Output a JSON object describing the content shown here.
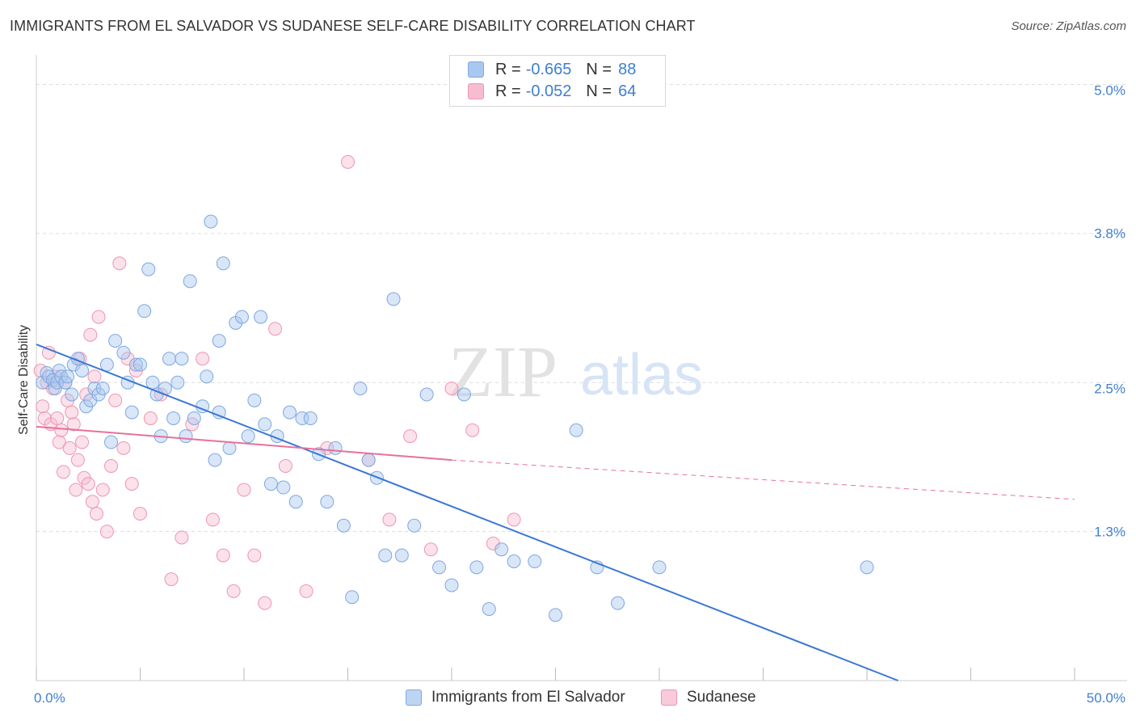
{
  "title": "IMMIGRANTS FROM EL SALVADOR VS SUDANESE SELF-CARE DISABILITY CORRELATION CHART",
  "source": "Source: ZipAtlas.com",
  "watermark": {
    "zip": "ZIP",
    "atlas": "atlas"
  },
  "legend": {
    "r_label": "R =",
    "n_label": "N =",
    "series": [
      {
        "r": "-0.665",
        "n": "88",
        "fill": "#a9c8f0",
        "stroke": "#7fa8e0"
      },
      {
        "r": "-0.052",
        "n": "64",
        "fill": "#f7bccf",
        "stroke": "#ee96b2"
      }
    ]
  },
  "bottom_legend": [
    "Immigrants from El Salvador",
    "Sudanese"
  ],
  "chart_data": {
    "type": "scatter",
    "xlabel": "",
    "ylabel": "Self-Care Disability",
    "xlim": [
      0,
      50
    ],
    "ylim": [
      0,
      5.2
    ],
    "x_tick_labels": [
      {
        "value": 0,
        "label": "0.0%"
      },
      {
        "value": 50,
        "label": "50.0%"
      }
    ],
    "y_ticks": [
      {
        "value": 1.3,
        "label": "1.3%"
      },
      {
        "value": 2.5,
        "label": "2.5%"
      },
      {
        "value": 3.8,
        "label": "3.8%"
      },
      {
        "value": 5.0,
        "label": "5.0%"
      }
    ],
    "y_gridlines": [
      1.25,
      2.5,
      3.75,
      5.0
    ],
    "grid": "horizontal dashed",
    "colors": {
      "el_salvador": "#3a78d4",
      "sudanese": "#e8709a",
      "tick_label": "#3f7fd0"
    },
    "series": [
      {
        "name": "Immigrants from El Salvador",
        "x": [
          0.3,
          0.5,
          0.6,
          0.8,
          0.9,
          1.0,
          1.1,
          1.2,
          1.4,
          1.5,
          1.7,
          1.8,
          2.0,
          2.2,
          2.4,
          2.6,
          2.8,
          3.0,
          3.2,
          3.4,
          3.6,
          3.8,
          4.2,
          4.4,
          4.6,
          4.8,
          5.0,
          5.2,
          5.4,
          5.6,
          5.8,
          6.0,
          6.2,
          6.4,
          6.6,
          6.8,
          7.0,
          7.2,
          7.4,
          7.6,
          8.0,
          8.2,
          8.4,
          8.6,
          8.8,
          9.0,
          9.3,
          9.6,
          9.9,
          10.2,
          10.5,
          10.8,
          11.0,
          11.3,
          11.6,
          11.9,
          12.2,
          12.5,
          12.8,
          13.2,
          13.6,
          14.0,
          14.4,
          14.8,
          15.2,
          15.6,
          16.0,
          16.4,
          16.8,
          17.2,
          17.6,
          18.2,
          18.8,
          19.4,
          20.0,
          20.6,
          21.2,
          21.8,
          22.4,
          23.0,
          24.0,
          25.0,
          26.0,
          27.0,
          28.0,
          30.0,
          40.0,
          8.8
        ],
        "y": [
          2.5,
          2.58,
          2.55,
          2.52,
          2.45,
          2.5,
          2.6,
          2.55,
          2.5,
          2.55,
          2.4,
          2.65,
          2.7,
          2.6,
          2.3,
          2.35,
          2.45,
          2.4,
          2.45,
          2.65,
          2.0,
          2.85,
          2.75,
          2.5,
          2.25,
          2.65,
          2.65,
          3.1,
          3.45,
          2.5,
          2.4,
          2.05,
          2.45,
          2.7,
          2.2,
          2.5,
          2.7,
          2.05,
          3.35,
          2.2,
          2.3,
          2.55,
          3.85,
          1.85,
          2.85,
          3.5,
          1.95,
          3.0,
          3.05,
          2.05,
          2.35,
          3.05,
          2.15,
          1.65,
          2.05,
          1.62,
          2.25,
          1.5,
          2.2,
          2.2,
          1.9,
          1.5,
          1.95,
          1.3,
          0.7,
          2.45,
          1.85,
          1.7,
          1.05,
          3.2,
          1.05,
          1.3,
          2.4,
          0.95,
          0.8,
          2.4,
          0.95,
          0.6,
          1.1,
          1.0,
          1.0,
          0.55,
          2.1,
          0.95,
          0.65,
          0.95,
          0.95,
          2.25
        ],
        "trend": {
          "x": [
            0,
            41.5
          ],
          "y": [
            2.82,
            0.0
          ]
        }
      },
      {
        "name": "Sudanese",
        "x": [
          0.2,
          0.3,
          0.4,
          0.5,
          0.6,
          0.7,
          0.8,
          0.9,
          1.0,
          1.1,
          1.2,
          1.3,
          1.4,
          1.5,
          1.6,
          1.7,
          1.8,
          1.9,
          2.0,
          2.1,
          2.2,
          2.3,
          2.4,
          2.5,
          2.6,
          2.7,
          2.8,
          2.9,
          3.0,
          3.2,
          3.4,
          3.6,
          3.8,
          4.0,
          4.2,
          4.4,
          4.6,
          4.8,
          5.0,
          5.5,
          6.0,
          6.5,
          7.0,
          7.5,
          8.0,
          8.5,
          9.0,
          9.5,
          10.0,
          10.5,
          11.0,
          11.5,
          12.0,
          13.0,
          14.0,
          15.0,
          16.0,
          17.0,
          18.0,
          19.0,
          20.0,
          21.0,
          22.0,
          23.0
        ],
        "y": [
          2.6,
          2.3,
          2.2,
          2.5,
          2.75,
          2.15,
          2.45,
          2.55,
          2.2,
          2.0,
          2.1,
          1.75,
          2.5,
          2.35,
          1.95,
          2.25,
          2.15,
          1.6,
          1.85,
          2.7,
          2.0,
          1.7,
          2.4,
          1.65,
          2.9,
          1.5,
          2.55,
          1.4,
          3.05,
          1.6,
          1.25,
          1.8,
          2.35,
          3.5,
          1.95,
          2.7,
          1.65,
          2.6,
          1.4,
          2.2,
          2.4,
          0.85,
          1.2,
          2.15,
          2.7,
          1.35,
          1.05,
          0.75,
          1.6,
          1.05,
          0.65,
          2.95,
          1.8,
          0.75,
          1.95,
          4.35,
          1.85,
          1.35,
          2.05,
          1.1,
          2.45,
          2.1,
          1.15,
          1.35
        ],
        "trend": {
          "x": [
            0,
            20.0
          ],
          "y": [
            2.13,
            1.85
          ]
        },
        "trend_dashed": {
          "x": [
            20.0,
            50.0
          ],
          "y": [
            1.85,
            1.52
          ]
        }
      }
    ]
  }
}
